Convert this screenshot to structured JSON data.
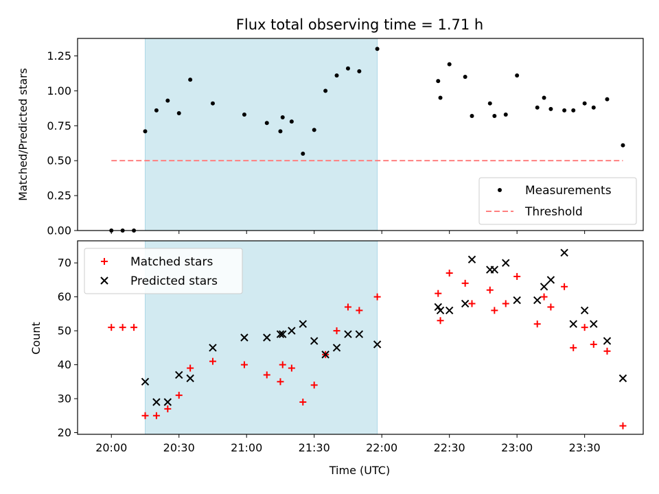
{
  "title": "Flux total observing time = 1.71 h",
  "colors": {
    "shade": "#add8e6",
    "measure": "#000000",
    "threshold": "#ff7f7f",
    "matched": "#ff0000",
    "predicted": "#000000"
  },
  "chart_data": [
    {
      "type": "scatter",
      "title": "Flux total observing time = 1.71 h",
      "xlabel": "",
      "ylabel": "Matched/Predicted stars",
      "xlim": [
        "19:45",
        "23:56"
      ],
      "ylim": [
        0,
        1.375
      ],
      "yticks": [
        "0.00",
        "0.25",
        "0.50",
        "0.75",
        "1.00",
        "1.25"
      ],
      "shaded_interval": [
        "20:15",
        "21:58"
      ],
      "legend": [
        "Measurements",
        "Threshold"
      ],
      "legend_position": "lower-right",
      "threshold": {
        "name": "Threshold",
        "value": 0.5,
        "x": [
          "20:00",
          "23:47"
        ]
      },
      "series": [
        {
          "name": "Measurements",
          "points": [
            [
              "20:00",
              0.0
            ],
            [
              "20:05",
              0.0
            ],
            [
              "20:10",
              0.0
            ],
            [
              "20:15",
              0.71
            ],
            [
              "20:20",
              0.86
            ],
            [
              "20:25",
              0.93
            ],
            [
              "20:30",
              0.84
            ],
            [
              "20:35",
              1.08
            ],
            [
              "20:45",
              0.91
            ],
            [
              "20:59",
              0.83
            ],
            [
              "21:09",
              0.77
            ],
            [
              "21:15",
              0.71
            ],
            [
              "21:16",
              0.81
            ],
            [
              "21:20",
              0.78
            ],
            [
              "21:25",
              0.55
            ],
            [
              "21:30",
              0.72
            ],
            [
              "21:35",
              1.0
            ],
            [
              "21:40",
              1.11
            ],
            [
              "21:45",
              1.16
            ],
            [
              "21:50",
              1.14
            ],
            [
              "21:58",
              1.3
            ],
            [
              "22:25",
              1.07
            ],
            [
              "22:26",
              0.95
            ],
            [
              "22:30",
              1.19
            ],
            [
              "22:37",
              1.1
            ],
            [
              "22:40",
              0.82
            ],
            [
              "22:48",
              0.91
            ],
            [
              "22:50",
              0.82
            ],
            [
              "22:55",
              0.83
            ],
            [
              "23:00",
              1.11
            ],
            [
              "23:09",
              0.88
            ],
            [
              "23:12",
              0.95
            ],
            [
              "23:15",
              0.87
            ],
            [
              "23:21",
              0.86
            ],
            [
              "23:25",
              0.86
            ],
            [
              "23:30",
              0.91
            ],
            [
              "23:34",
              0.88
            ],
            [
              "23:40",
              0.94
            ],
            [
              "23:47",
              0.61
            ]
          ]
        }
      ]
    },
    {
      "type": "scatter",
      "xlabel": "Time (UTC)",
      "ylabel": "Count",
      "xlim": [
        "19:45",
        "23:56"
      ],
      "ylim": [
        19.5,
        76.5
      ],
      "xticks": [
        "20:00",
        "20:30",
        "21:00",
        "21:30",
        "22:00",
        "22:30",
        "23:00",
        "23:30"
      ],
      "yticks": [
        "20",
        "30",
        "40",
        "50",
        "60",
        "70"
      ],
      "shaded_interval": [
        "20:15",
        "21:58"
      ],
      "legend": [
        "Matched stars",
        "Predicted stars"
      ],
      "legend_position": "upper-left",
      "series": [
        {
          "name": "Matched stars",
          "points": [
            [
              "20:00",
              51
            ],
            [
              "20:05",
              51
            ],
            [
              "20:10",
              51
            ],
            [
              "20:15",
              25
            ],
            [
              "20:20",
              25
            ],
            [
              "20:25",
              27
            ],
            [
              "20:30",
              31
            ],
            [
              "20:35",
              39
            ],
            [
              "20:45",
              41
            ],
            [
              "20:59",
              40
            ],
            [
              "21:09",
              37
            ],
            [
              "21:15",
              35
            ],
            [
              "21:16",
              40
            ],
            [
              "21:20",
              39
            ],
            [
              "21:25",
              29
            ],
            [
              "21:30",
              34
            ],
            [
              "21:35",
              43
            ],
            [
              "21:40",
              50
            ],
            [
              "21:45",
              57
            ],
            [
              "21:50",
              56
            ],
            [
              "21:58",
              60
            ],
            [
              "22:25",
              61
            ],
            [
              "22:26",
              53
            ],
            [
              "22:30",
              67
            ],
            [
              "22:37",
              64
            ],
            [
              "22:40",
              58
            ],
            [
              "22:48",
              62
            ],
            [
              "22:50",
              56
            ],
            [
              "22:55",
              58
            ],
            [
              "23:00",
              66
            ],
            [
              "23:09",
              52
            ],
            [
              "23:12",
              60
            ],
            [
              "23:15",
              57
            ],
            [
              "23:21",
              63
            ],
            [
              "23:25",
              45
            ],
            [
              "23:30",
              51
            ],
            [
              "23:34",
              46
            ],
            [
              "23:40",
              44
            ],
            [
              "23:47",
              22
            ]
          ]
        },
        {
          "name": "Predicted stars",
          "points": [
            [
              "20:15",
              35
            ],
            [
              "20:20",
              29
            ],
            [
              "20:25",
              29
            ],
            [
              "20:30",
              37
            ],
            [
              "20:35",
              36
            ],
            [
              "20:45",
              45
            ],
            [
              "20:59",
              48
            ],
            [
              "21:09",
              48
            ],
            [
              "21:15",
              49
            ],
            [
              "21:16",
              49
            ],
            [
              "21:20",
              50
            ],
            [
              "21:25",
              52
            ],
            [
              "21:30",
              47
            ],
            [
              "21:35",
              43
            ],
            [
              "21:40",
              45
            ],
            [
              "21:45",
              49
            ],
            [
              "21:50",
              49
            ],
            [
              "21:58",
              46
            ],
            [
              "22:25",
              57
            ],
            [
              "22:26",
              56
            ],
            [
              "22:30",
              56
            ],
            [
              "22:37",
              58
            ],
            [
              "22:40",
              71
            ],
            [
              "22:48",
              68
            ],
            [
              "22:50",
              68
            ],
            [
              "22:55",
              70
            ],
            [
              "23:00",
              59
            ],
            [
              "23:09",
              59
            ],
            [
              "23:12",
              63
            ],
            [
              "23:15",
              65
            ],
            [
              "23:21",
              73
            ],
            [
              "23:25",
              52
            ],
            [
              "23:30",
              56
            ],
            [
              "23:34",
              52
            ],
            [
              "23:40",
              47
            ],
            [
              "23:47",
              36
            ]
          ]
        }
      ]
    }
  ]
}
